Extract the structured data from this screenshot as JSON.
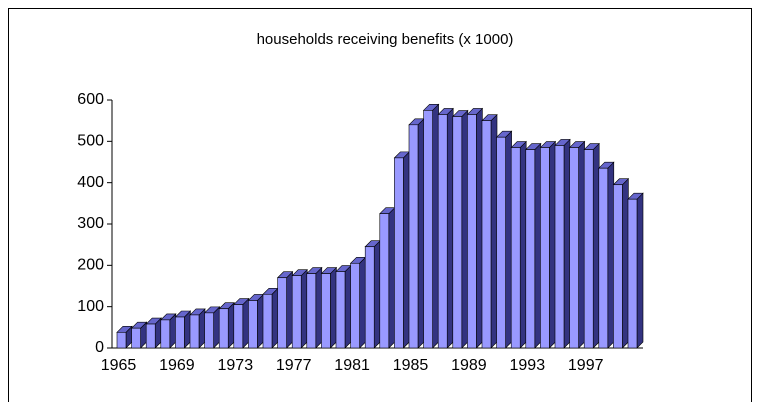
{
  "chart_data": {
    "type": "bar3d",
    "title": "households receiving benefits (x 1000)",
    "categories": [
      "1965",
      null,
      null,
      null,
      "1969",
      null,
      null,
      null,
      "1973",
      null,
      null,
      null,
      "1977",
      null,
      null,
      null,
      "1981",
      null,
      null,
      null,
      "1985",
      null,
      null,
      null,
      "1989",
      null,
      null,
      null,
      "1993",
      null,
      null,
      null,
      "1997",
      null,
      null,
      null
    ],
    "values": [
      38,
      48,
      58,
      68,
      75,
      80,
      85,
      95,
      105,
      115,
      130,
      170,
      175,
      180,
      180,
      185,
      205,
      245,
      325,
      460,
      540,
      575,
      565,
      560,
      565,
      550,
      510,
      485,
      480,
      485,
      490,
      485,
      480,
      435,
      395,
      360
    ],
    "color": "#9999ff",
    "ylim": [
      0,
      600
    ],
    "yticks": [
      0,
      100,
      200,
      300,
      400,
      500,
      600
    ]
  }
}
